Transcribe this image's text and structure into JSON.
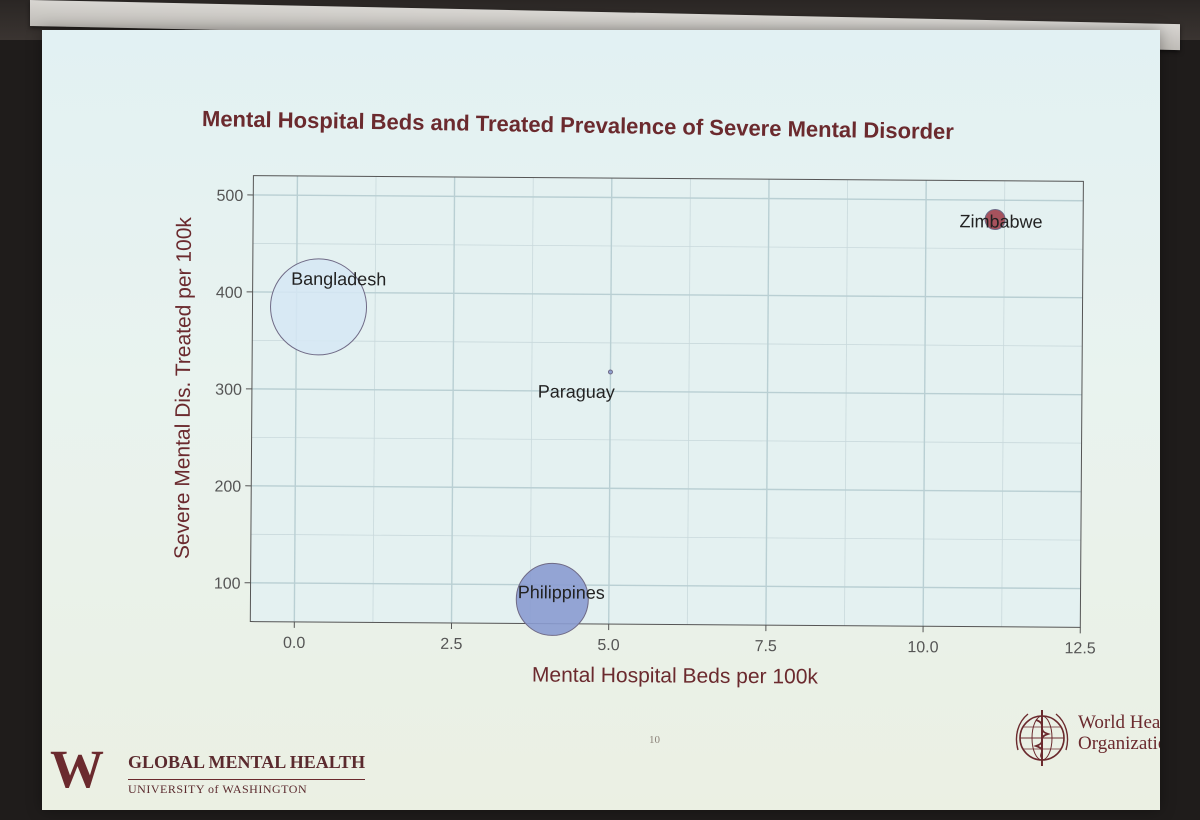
{
  "slide": {
    "title": "Mental Hospital Beds and Treated Prevalence of Severe Mental Disorder",
    "page_number": "10"
  },
  "footer": {
    "uw_logo_letter": "W",
    "uw_program": "GLOBAL MENTAL HEALTH",
    "uw_university": "UNIVERSITY of WASHINGTON",
    "who_name": "World Health Organization",
    "who_emblem_icon": "who-emblem-icon"
  },
  "colors": {
    "title": "#6b2a2e",
    "axis_text": "#6b2a2e",
    "grid": "#c9d9dc",
    "bangladesh": "#d6e7f4",
    "philippines": "#8a9bd0",
    "zimbabwe": "#a0404c",
    "paraguay": "#8a9bd0"
  },
  "chart_data": {
    "type": "scatter",
    "title": "",
    "xlabel": "Mental Hospital Beds per 100k",
    "ylabel": "Severe Mental Dis. Treated per 100k",
    "xlim": [
      -0.7,
      12.5
    ],
    "ylim": [
      60,
      520
    ],
    "xticks": [
      0.0,
      2.5,
      5.0,
      7.5,
      10.0,
      12.5
    ],
    "xtick_labels": [
      "0.0",
      "2.5",
      "5.0",
      "7.5",
      "10.0",
      "12.5"
    ],
    "yticks": [
      100,
      200,
      300,
      400,
      500
    ],
    "ytick_labels": [
      "100",
      "200",
      "300",
      "400",
      "500"
    ],
    "grid": true,
    "points": [
      {
        "label": "Bangladesh",
        "x": 0.35,
        "y": 385,
        "bubble_size": 48,
        "color": "#d6e7f4"
      },
      {
        "label": "Paraguay",
        "x": 5.0,
        "y": 320,
        "bubble_size": 2,
        "color": "#8a9bd0"
      },
      {
        "label": "Philippines",
        "x": 4.1,
        "y": 85,
        "bubble_size": 36,
        "color": "#8a9bd0"
      },
      {
        "label": "Zimbabwe",
        "x": 11.1,
        "y": 480,
        "bubble_size": 10,
        "color": "#a0404c"
      }
    ]
  }
}
